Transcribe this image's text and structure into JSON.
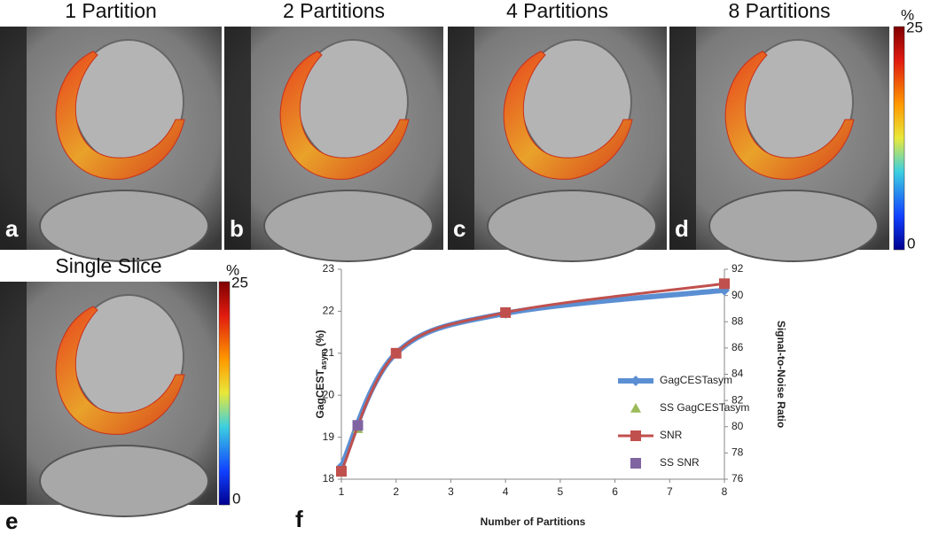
{
  "panels": [
    {
      "title": "1 Partition",
      "letter": "a"
    },
    {
      "title": "2 Partitions",
      "letter": "b"
    },
    {
      "title": "4 Partitions",
      "letter": "c"
    },
    {
      "title": "8 Partitions",
      "letter": "d"
    },
    {
      "title": "Single Slice",
      "letter": "e"
    }
  ],
  "colorbars": [
    {
      "unit": "%",
      "top": "25",
      "bottom": "0"
    },
    {
      "unit": "%",
      "top": "25",
      "bottom": "0"
    }
  ],
  "chart_letter": "f",
  "chart_data": {
    "type": "line",
    "x_label": "Number of Partitions",
    "y_label": {
      "main": "GagCEST",
      "sub": "asym",
      "unit": "(%)"
    },
    "y2_label": "Signal-to-Noise Ratio",
    "xlim": [
      1,
      8
    ],
    "xticks": [
      1,
      2,
      3,
      4,
      5,
      6,
      7,
      8
    ],
    "ylim": [
      18,
      23
    ],
    "yticks": [
      18,
      19,
      20,
      21,
      22,
      23
    ],
    "y2lim": [
      76,
      92
    ],
    "y2ticks": [
      76,
      78,
      80,
      82,
      84,
      86,
      88,
      90,
      92
    ],
    "series": [
      {
        "name": "GagCESTasym",
        "color": "#5b8fd3",
        "marker": "diamond",
        "x": [
          1,
          2,
          4,
          8
        ],
        "values": [
          18.3,
          21.0,
          21.95,
          22.5
        ]
      },
      {
        "name": "SS GagCESTasym",
        "color": "#9bbb59",
        "marker": "triangle",
        "x": [
          1.3
        ],
        "values": [
          19.2
        ]
      },
      {
        "name": "SNR",
        "color": "#c0504d",
        "marker": "square",
        "axis": "y2",
        "x": [
          1,
          2,
          4,
          8
        ],
        "values": [
          76.6,
          85.6,
          88.7,
          90.9
        ]
      },
      {
        "name": "SS SNR",
        "color": "#8064a2",
        "marker": "square",
        "axis": "y2",
        "x": [
          1.3
        ],
        "values": [
          80.1
        ]
      }
    ]
  }
}
